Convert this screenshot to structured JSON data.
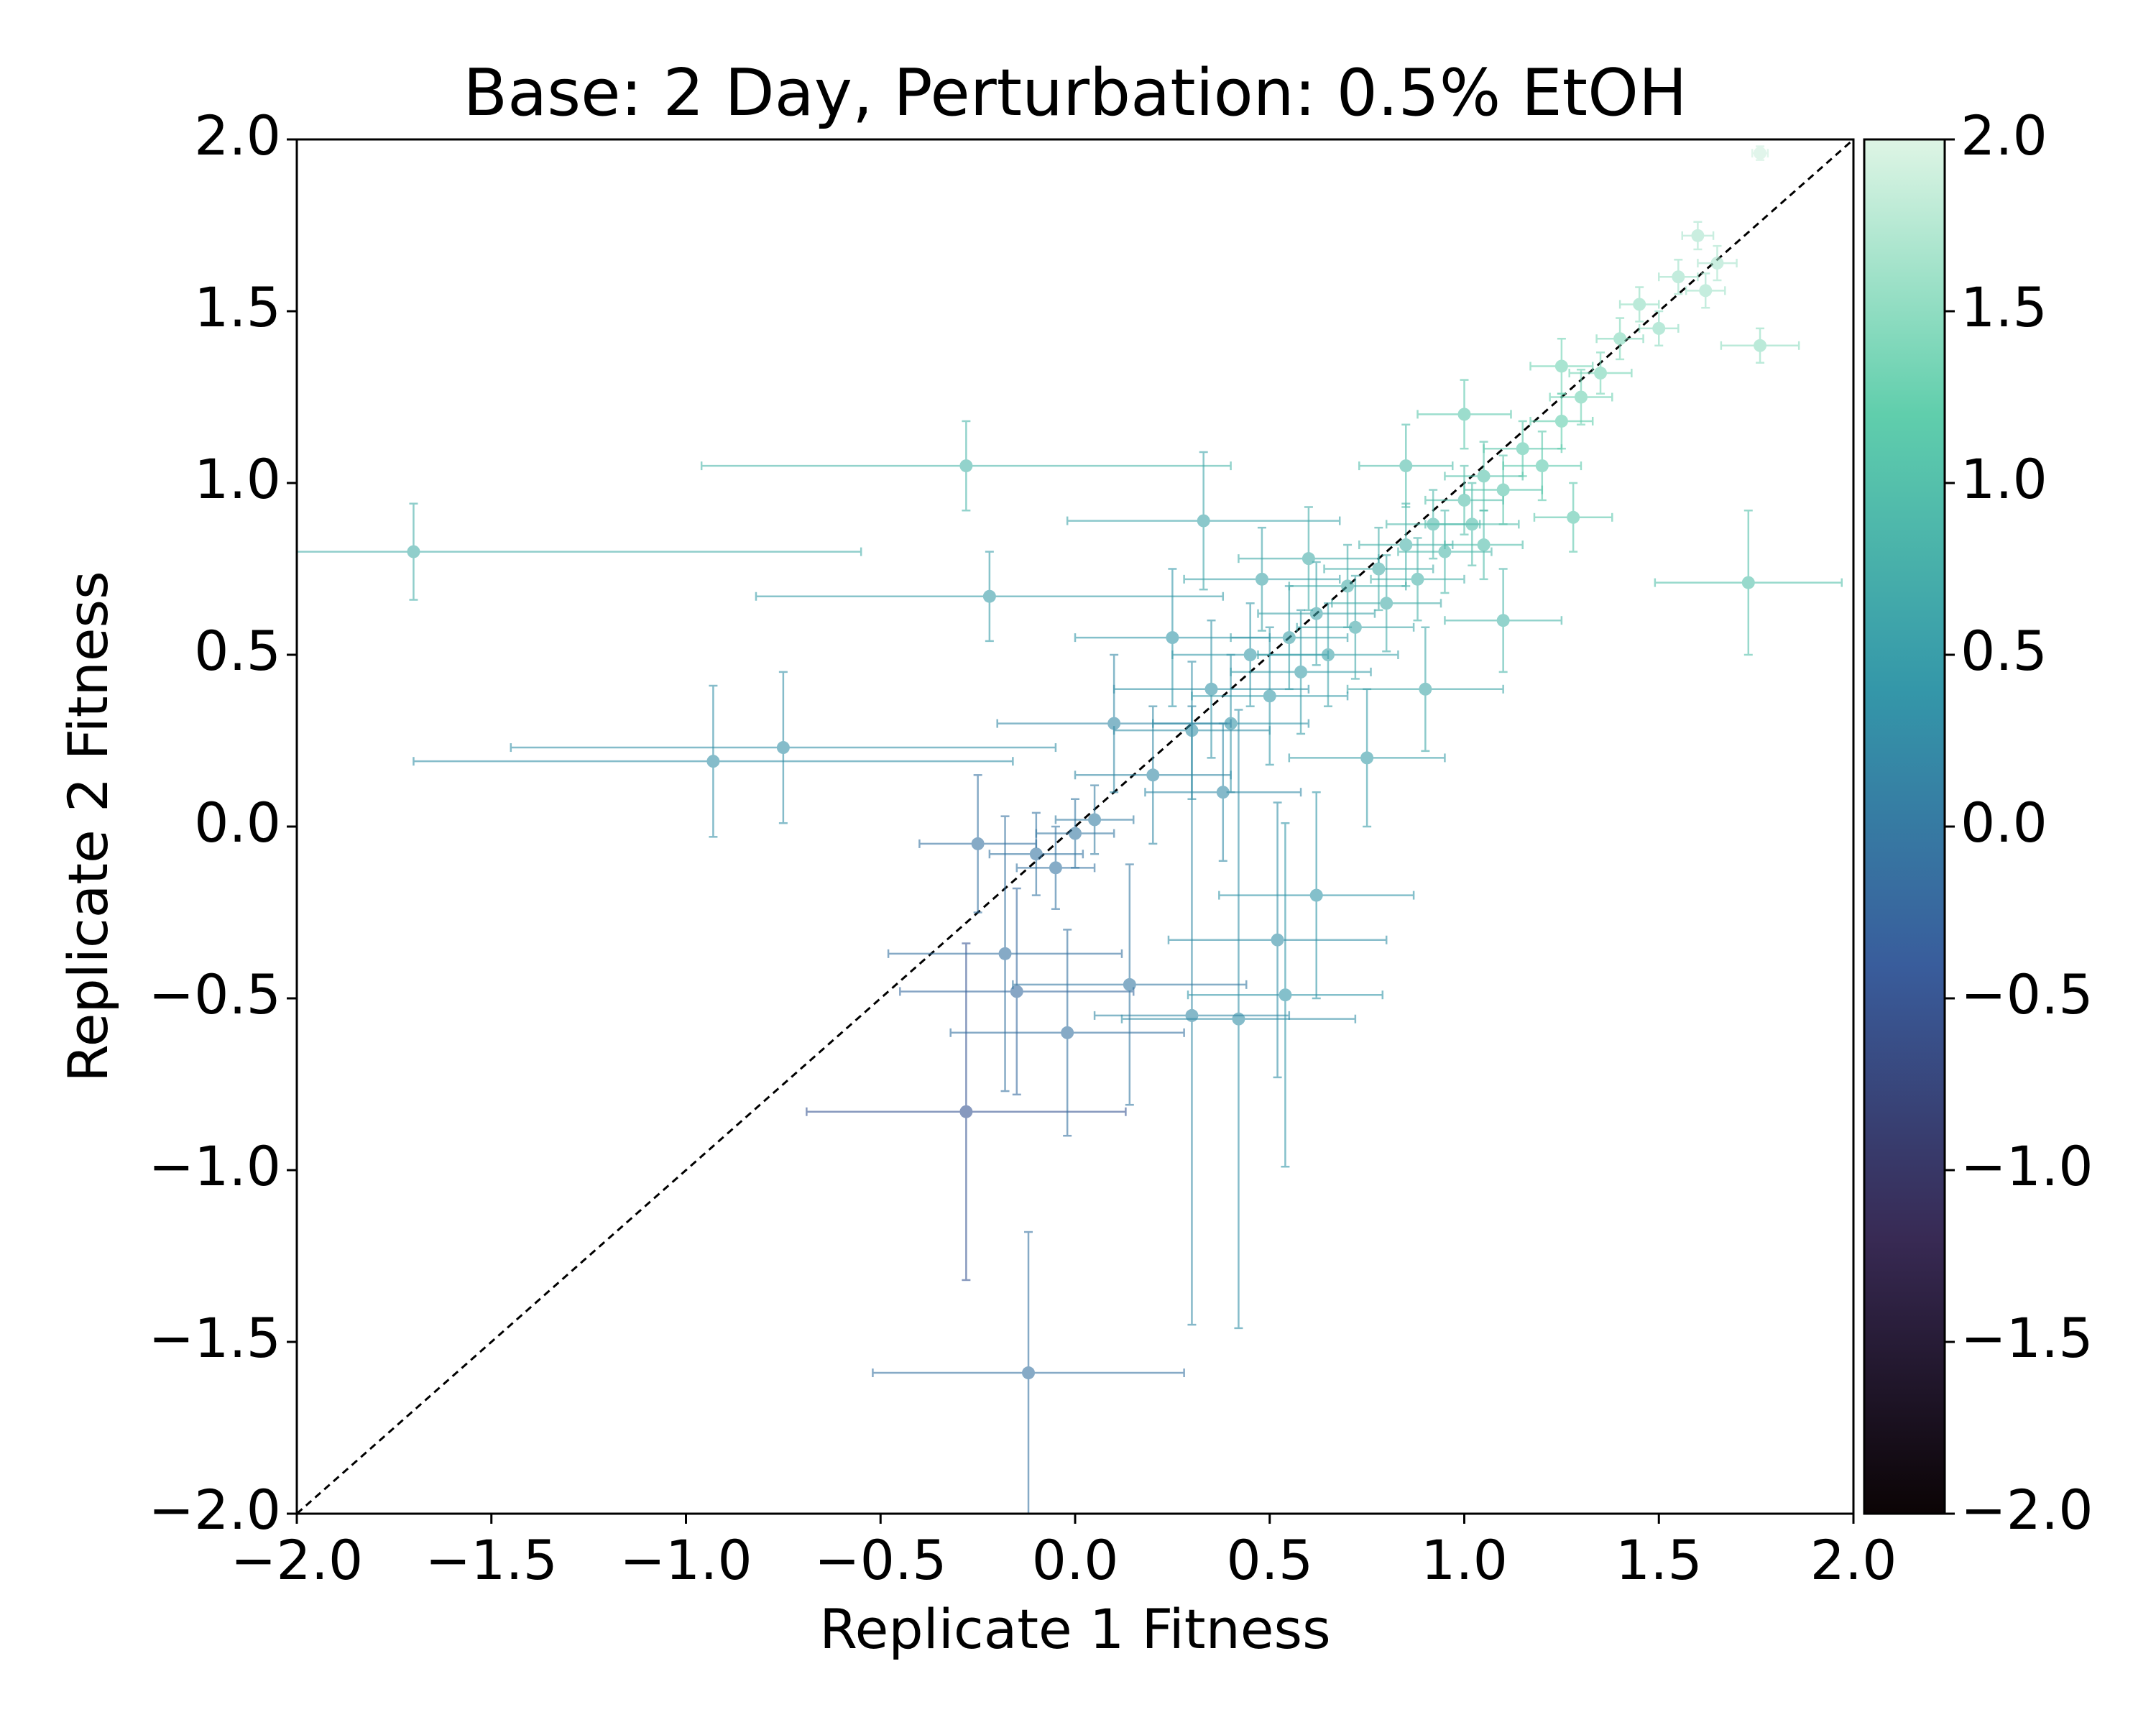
{
  "chart_data": {
    "type": "errorbar-scatter",
    "title": "Base: 2 Day, Perturbation: 0.5% EtOH",
    "xlabel": "Replicate 1 Fitness",
    "ylabel": "Replicate 2 Fitness",
    "xlim": [
      -2,
      2
    ],
    "ylim": [
      -2,
      2
    ],
    "xticks": [
      {
        "value": -2,
        "label": "−2.0"
      },
      {
        "value": -1.5,
        "label": "−1.5"
      },
      {
        "value": -1,
        "label": "−1.0"
      },
      {
        "value": -0.5,
        "label": "−0.5"
      },
      {
        "value": 0,
        "label": "0.0"
      },
      {
        "value": 0.5,
        "label": "0.5"
      },
      {
        "value": 1,
        "label": "1.0"
      },
      {
        "value": 1.5,
        "label": "1.5"
      },
      {
        "value": 2,
        "label": "2.0"
      }
    ],
    "yticks": [
      {
        "value": -2,
        "label": "−2.0"
      },
      {
        "value": -1.5,
        "label": "−1.5"
      },
      {
        "value": -1,
        "label": "−1.0"
      },
      {
        "value": -0.5,
        "label": "−0.5"
      },
      {
        "value": 0,
        "label": "0.0"
      },
      {
        "value": 0.5,
        "label": "0.5"
      },
      {
        "value": 1,
        "label": "1.0"
      },
      {
        "value": 1.5,
        "label": "1.5"
      },
      {
        "value": 2,
        "label": "2.0"
      }
    ],
    "clim": [
      -2,
      2
    ],
    "cticks": [
      {
        "value": -2,
        "label": "−2.0"
      },
      {
        "value": -1.5,
        "label": "−1.5"
      },
      {
        "value": -1,
        "label": "−1.0"
      },
      {
        "value": -0.5,
        "label": "−0.5"
      },
      {
        "value": 0,
        "label": "0.0"
      },
      {
        "value": 0.5,
        "label": "0.5"
      },
      {
        "value": 1,
        "label": "1.0"
      },
      {
        "value": 1.5,
        "label": "1.5"
      },
      {
        "value": 2,
        "label": "2.0"
      }
    ],
    "colormap": [
      "#0b0405",
      "#382a54",
      "#395d9c",
      "#3497a9",
      "#60ceac",
      "#def5e5"
    ],
    "identity_line": true,
    "x": [
      -1.7,
      -0.28,
      1.73,
      -0.93,
      -0.75,
      -0.22,
      -0.12,
      -0.28,
      1.76,
      1.76,
      0.33,
      0.42,
      0.3,
      -0.02,
      0.54,
      -0.15,
      -0.18,
      0.14,
      0.52,
      0.62,
      -0.25,
      -0.1,
      0.0,
      -0.05,
      0.05,
      0.2,
      0.3,
      0.35,
      0.4,
      0.45,
      0.5,
      0.55,
      0.58,
      0.62,
      0.65,
      0.7,
      0.72,
      0.78,
      0.8,
      0.85,
      0.88,
      0.92,
      0.95,
      1.0,
      1.02,
      1.05,
      1.1,
      1.15,
      1.2,
      1.25,
      1.3,
      1.35,
      1.4,
      1.45,
      1.55,
      1.6,
      1.65,
      1.62,
      1.5,
      1.28,
      1.1,
      0.9,
      0.75,
      1.05,
      0.6,
      0.48,
      0.25,
      0.1,
      0.85,
      1.0,
      1.25,
      0.38
    ],
    "y": [
      0.8,
      1.05,
      0.71,
      0.19,
      0.23,
      0.67,
      -1.59,
      -0.83,
      1.4,
      1.96,
      0.89,
      -0.56,
      -0.55,
      -0.6,
      -0.49,
      -0.48,
      -0.37,
      -0.46,
      -0.33,
      -0.2,
      -0.05,
      -0.08,
      -0.02,
      -0.12,
      0.02,
      0.15,
      0.28,
      0.4,
      0.3,
      0.5,
      0.38,
      0.55,
      0.45,
      0.62,
      0.5,
      0.7,
      0.58,
      0.75,
      0.65,
      0.82,
      0.72,
      0.88,
      0.8,
      0.95,
      0.88,
      1.02,
      0.98,
      1.1,
      1.05,
      1.18,
      1.25,
      1.32,
      1.42,
      1.52,
      1.6,
      1.72,
      1.64,
      1.56,
      1.45,
      0.9,
      0.6,
      0.4,
      0.2,
      0.82,
      0.78,
      0.72,
      0.55,
      0.3,
      1.05,
      1.2,
      1.34,
      0.1
    ],
    "xerr": [
      1.15,
      0.68,
      0.24,
      0.77,
      0.7,
      0.6,
      0.4,
      0.41,
      0.1,
      0.02,
      0.35,
      0.3,
      0.25,
      0.3,
      0.25,
      0.3,
      0.3,
      0.3,
      0.28,
      0.25,
      0.15,
      0.12,
      0.1,
      0.1,
      0.1,
      0.2,
      0.2,
      0.25,
      0.2,
      0.2,
      0.2,
      0.15,
      0.18,
      0.15,
      0.18,
      0.15,
      0.15,
      0.14,
      0.14,
      0.12,
      0.12,
      0.12,
      0.12,
      0.1,
      0.12,
      0.1,
      0.1,
      0.1,
      0.1,
      0.08,
      0.08,
      0.08,
      0.06,
      0.05,
      0.05,
      0.04,
      0.05,
      0.05,
      0.05,
      0.1,
      0.15,
      0.2,
      0.2,
      0.1,
      0.18,
      0.2,
      0.25,
      0.3,
      0.12,
      0.12,
      0.08,
      0.2
    ],
    "yerr": [
      0.14,
      0.13,
      0.21,
      0.22,
      0.22,
      0.13,
      0.41,
      0.49,
      0.05,
      0.02,
      0.2,
      0.9,
      0.9,
      0.3,
      0.5,
      0.3,
      0.4,
      0.35,
      0.4,
      0.3,
      0.2,
      0.12,
      0.1,
      0.12,
      0.1,
      0.2,
      0.2,
      0.2,
      0.2,
      0.15,
      0.2,
      0.15,
      0.18,
      0.15,
      0.15,
      0.12,
      0.15,
      0.12,
      0.14,
      0.12,
      0.12,
      0.1,
      0.12,
      0.1,
      0.12,
      0.1,
      0.1,
      0.08,
      0.1,
      0.08,
      0.08,
      0.06,
      0.06,
      0.05,
      0.05,
      0.04,
      0.05,
      0.05,
      0.05,
      0.1,
      0.15,
      0.18,
      0.2,
      0.1,
      0.15,
      0.15,
      0.2,
      0.2,
      0.12,
      0.1,
      0.08,
      0.2
    ],
    "c": [
      0.75,
      0.85,
      1.0,
      0.3,
      0.3,
      0.5,
      -0.1,
      -0.5,
      1.5,
      1.9,
      0.6,
      0.3,
      0.2,
      -0.1,
      0.4,
      -0.2,
      -0.1,
      0.0,
      0.3,
      0.4,
      -0.1,
      -0.05,
      0.0,
      -0.05,
      0.05,
      0.2,
      0.3,
      0.35,
      0.35,
      0.45,
      0.45,
      0.55,
      0.5,
      0.6,
      0.58,
      0.7,
      0.65,
      0.75,
      0.72,
      0.82,
      0.8,
      0.9,
      0.88,
      0.98,
      0.95,
      1.03,
      1.05,
      1.12,
      1.12,
      1.2,
      1.28,
      1.33,
      1.4,
      1.5,
      1.58,
      1.66,
      1.65,
      1.6,
      1.48,
      1.1,
      0.85,
      0.65,
      0.5,
      0.95,
      0.7,
      0.6,
      0.4,
      0.2,
      0.95,
      1.1,
      1.3,
      0.25
    ]
  }
}
